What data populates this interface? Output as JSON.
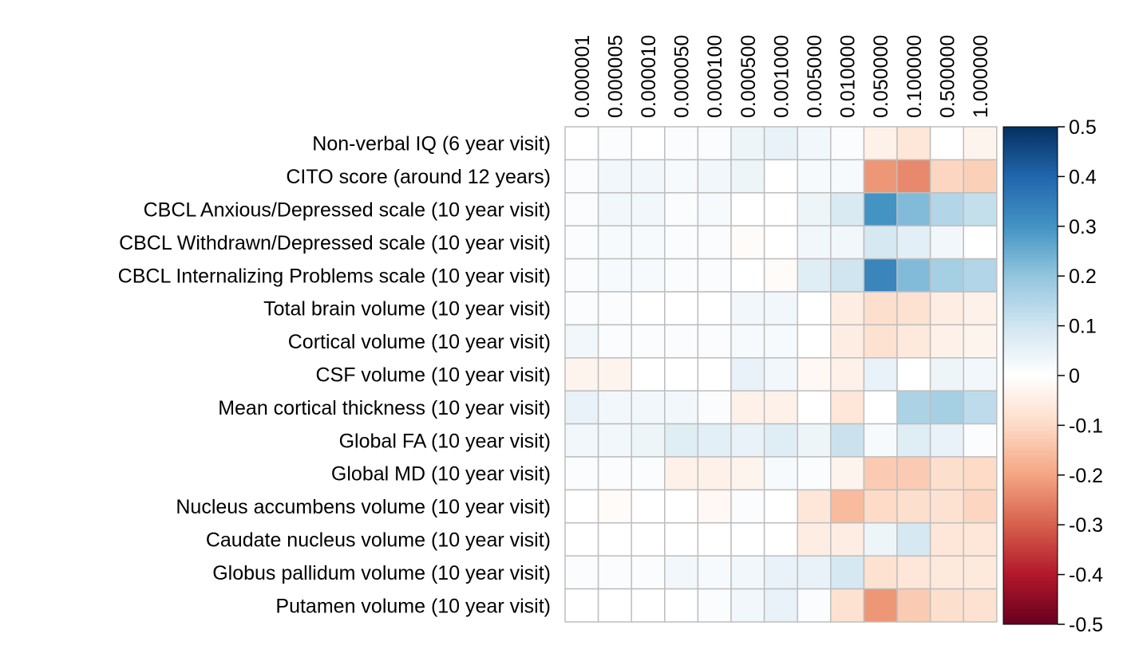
{
  "chart_data": {
    "type": "heatmap",
    "title": "",
    "xlabel": "",
    "ylabel": "",
    "columns": [
      "0.000001",
      "0.000005",
      "0.000010",
      "0.000050",
      "0.000100",
      "0.000500",
      "0.001000",
      "0.005000",
      "0.010000",
      "0.050000",
      "0.100000",
      "0.500000",
      "1.000000"
    ],
    "rows": [
      "Non-verbal IQ (6 year visit)",
      "CITO score (around 12 years)",
      "CBCL Anxious/Depressed scale (10 year visit)",
      "CBCL Withdrawn/Depressed scale (10 year visit)",
      "CBCL Internalizing Problems scale (10 year visit)",
      "Total brain volume (10 year visit)",
      "Cortical volume (10 year visit)",
      "CSF volume (10 year visit)",
      "Mean cortical thickness (10 year visit)",
      "Global FA (10 year visit)",
      "Global MD (10 year visit)",
      "Nucleus accumbens volume (10 year visit)",
      "Caudate nucleus volume (10 year visit)",
      "Globus pallidum volume (10 year visit)",
      "Putamen volume (10 year visit)"
    ],
    "values": [
      [
        0.0,
        0.01,
        0.0,
        0.01,
        0.01,
        0.04,
        0.05,
        0.03,
        0.01,
        -0.04,
        -0.07,
        0.0,
        -0.03
      ],
      [
        0.01,
        0.03,
        0.03,
        0.02,
        0.03,
        0.04,
        0.0,
        0.02,
        0.02,
        -0.22,
        -0.24,
        -0.11,
        -0.12
      ],
      [
        0.01,
        0.03,
        0.03,
        0.01,
        0.02,
        0.0,
        0.0,
        0.04,
        0.08,
        0.3,
        0.22,
        0.15,
        0.12
      ],
      [
        0.01,
        0.02,
        0.02,
        0.01,
        0.01,
        -0.01,
        0.0,
        0.03,
        0.03,
        0.09,
        0.06,
        0.03,
        0.0
      ],
      [
        0.01,
        0.02,
        0.02,
        0.01,
        0.01,
        0.0,
        -0.01,
        0.07,
        0.1,
        0.33,
        0.22,
        0.17,
        0.15
      ],
      [
        0.01,
        0.01,
        0.0,
        0.0,
        0.0,
        0.03,
        0.03,
        0.0,
        -0.05,
        -0.09,
        -0.08,
        -0.05,
        -0.04
      ],
      [
        0.03,
        0.01,
        0.01,
        0.01,
        0.01,
        0.02,
        0.02,
        0.0,
        -0.05,
        -0.08,
        -0.06,
        -0.04,
        -0.03
      ],
      [
        -0.03,
        -0.03,
        0.0,
        0.0,
        0.0,
        0.05,
        0.03,
        -0.02,
        -0.04,
        0.05,
        0.0,
        0.04,
        0.03
      ],
      [
        0.05,
        0.03,
        0.03,
        0.03,
        0.01,
        -0.04,
        -0.04,
        0.0,
        -0.07,
        0.0,
        0.16,
        0.17,
        0.13
      ],
      [
        0.03,
        0.03,
        0.04,
        0.07,
        0.06,
        0.05,
        0.07,
        0.04,
        0.11,
        0.02,
        0.07,
        0.05,
        0.01
      ],
      [
        0.01,
        0.01,
        0.01,
        -0.04,
        -0.04,
        -0.03,
        0.02,
        0.01,
        -0.03,
        -0.13,
        -0.13,
        -0.09,
        -0.1
      ],
      [
        0.0,
        -0.01,
        0.0,
        0.0,
        -0.02,
        0.01,
        0.0,
        -0.07,
        -0.16,
        -0.1,
        -0.09,
        -0.08,
        -0.11
      ],
      [
        0.0,
        0.0,
        0.0,
        0.0,
        0.0,
        0.0,
        0.0,
        -0.05,
        -0.05,
        0.04,
        0.09,
        -0.07,
        -0.07
      ],
      [
        0.01,
        0.01,
        0.01,
        0.03,
        0.02,
        0.03,
        0.05,
        0.05,
        0.09,
        -0.08,
        -0.07,
        -0.06,
        -0.06
      ],
      [
        0.0,
        0.0,
        0.0,
        0.0,
        0.01,
        0.03,
        0.05,
        0.01,
        -0.08,
        -0.22,
        -0.13,
        -0.09,
        -0.08
      ]
    ],
    "colorbar": {
      "range": [
        -0.5,
        0.5
      ],
      "ticks": [
        "0.5",
        "0.4",
        "0.3",
        "0.2",
        "0.1",
        "0",
        "-0.1",
        "-0.2",
        "-0.3",
        "-0.4",
        "-0.5"
      ],
      "stops": [
        "#67001F",
        "#B2182B",
        "#D6604D",
        "#F4A582",
        "#FDDBC7",
        "#FFFFFF",
        "#D1E5F0",
        "#92C5DE",
        "#4393C3",
        "#2166AC",
        "#053061"
      ]
    },
    "grid": true
  },
  "colors": {
    "grid_line": "#BEBEBE",
    "text": "#000000"
  }
}
